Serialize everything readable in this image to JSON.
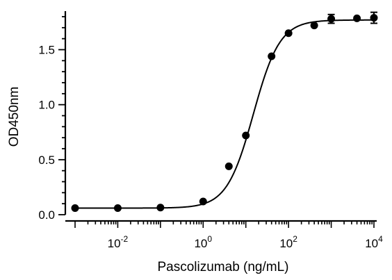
{
  "chart_data": {
    "type": "scatter",
    "title": "",
    "xlabel": "Pascolizumab (ng/mL)",
    "ylabel": "OD450nm",
    "x_scale": "log10",
    "xlim": [
      0.001,
      10000
    ],
    "ylim": [
      0.0,
      1.8
    ],
    "x_ticks": [
      {
        "value": 0.01,
        "base": "10",
        "exp": "-2"
      },
      {
        "value": 1,
        "base": "10",
        "exp": "0"
      },
      {
        "value": 100,
        "base": "10",
        "exp": "2"
      },
      {
        "value": 10000,
        "base": "10",
        "exp": "4"
      }
    ],
    "y_ticks": [
      {
        "value": 0.0,
        "label": "0.0"
      },
      {
        "value": 0.5,
        "label": "0.5"
      },
      {
        "value": 1.0,
        "label": "1.0"
      },
      {
        "value": 1.5,
        "label": "1.5"
      }
    ],
    "grid": false,
    "legend": "none",
    "series": [
      {
        "points": [
          {
            "x": 0.001,
            "y": 0.06,
            "err": 0
          },
          {
            "x": 0.01,
            "y": 0.06,
            "err": 0
          },
          {
            "x": 0.1,
            "y": 0.065,
            "err": 0
          },
          {
            "x": 1,
            "y": 0.12,
            "err": 0
          },
          {
            "x": 4,
            "y": 0.44,
            "err": 0
          },
          {
            "x": 10,
            "y": 0.72,
            "err": 0
          },
          {
            "x": 40,
            "y": 1.44,
            "err": 0
          },
          {
            "x": 100,
            "y": 1.65,
            "err": 0
          },
          {
            "x": 400,
            "y": 1.72,
            "err": 0
          },
          {
            "x": 1000,
            "y": 1.78,
            "err": 0.04
          },
          {
            "x": 4000,
            "y": 1.785,
            "err": 0
          },
          {
            "x": 10000,
            "y": 1.79,
            "err": 0.05
          }
        ],
        "fit": {
          "model": "4PL",
          "bottom": 0.06,
          "top": 1.77,
          "ec50": 15.0,
          "hill": 1.4
        },
        "color": "#000000"
      }
    ]
  }
}
